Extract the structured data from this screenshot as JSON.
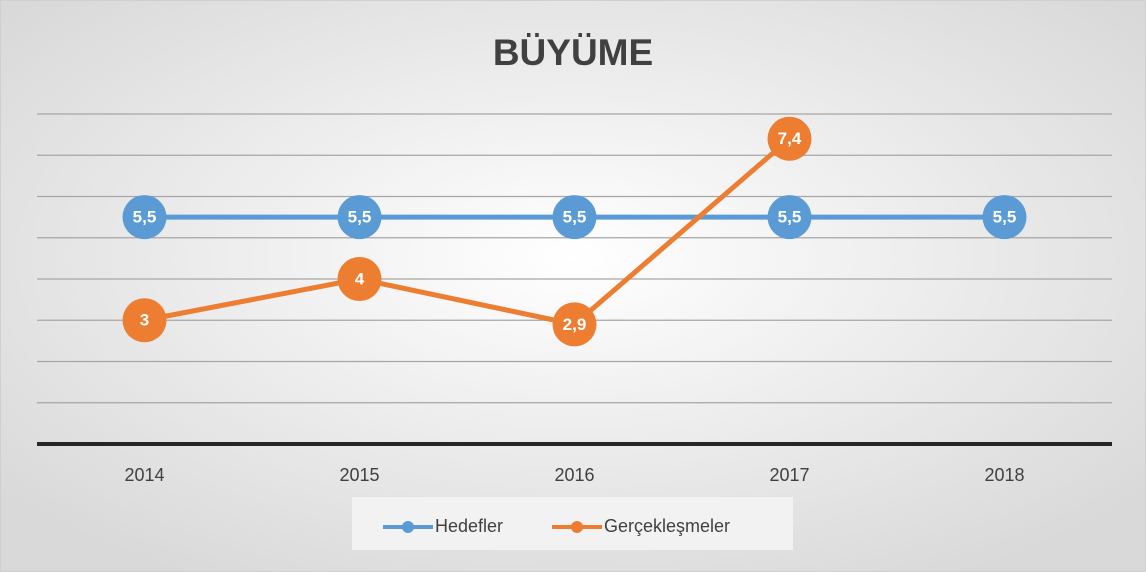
{
  "chart_data": {
    "type": "line",
    "title": "BÜYÜME",
    "categories": [
      "2014",
      "2015",
      "2016",
      "2017",
      "2018"
    ],
    "series": [
      {
        "name": "Hedefler",
        "color": "#5b9bd5",
        "values": [
          5.5,
          5.5,
          5.5,
          5.5,
          5.5
        ],
        "value_labels": [
          "5,5",
          "5,5",
          "5,5",
          "5,5",
          "5,5"
        ]
      },
      {
        "name": "Gerçekleşmeler",
        "color": "#ed7d31",
        "values": [
          3,
          4,
          2.9,
          7.4,
          null
        ],
        "value_labels": [
          "3",
          "4",
          "2,9",
          "7,4",
          null
        ]
      }
    ],
    "ylim": [
      0,
      8
    ],
    "yticks": [
      0,
      1,
      2,
      3,
      4,
      5,
      6,
      7,
      8
    ],
    "grid": true,
    "legend": "bottom"
  }
}
